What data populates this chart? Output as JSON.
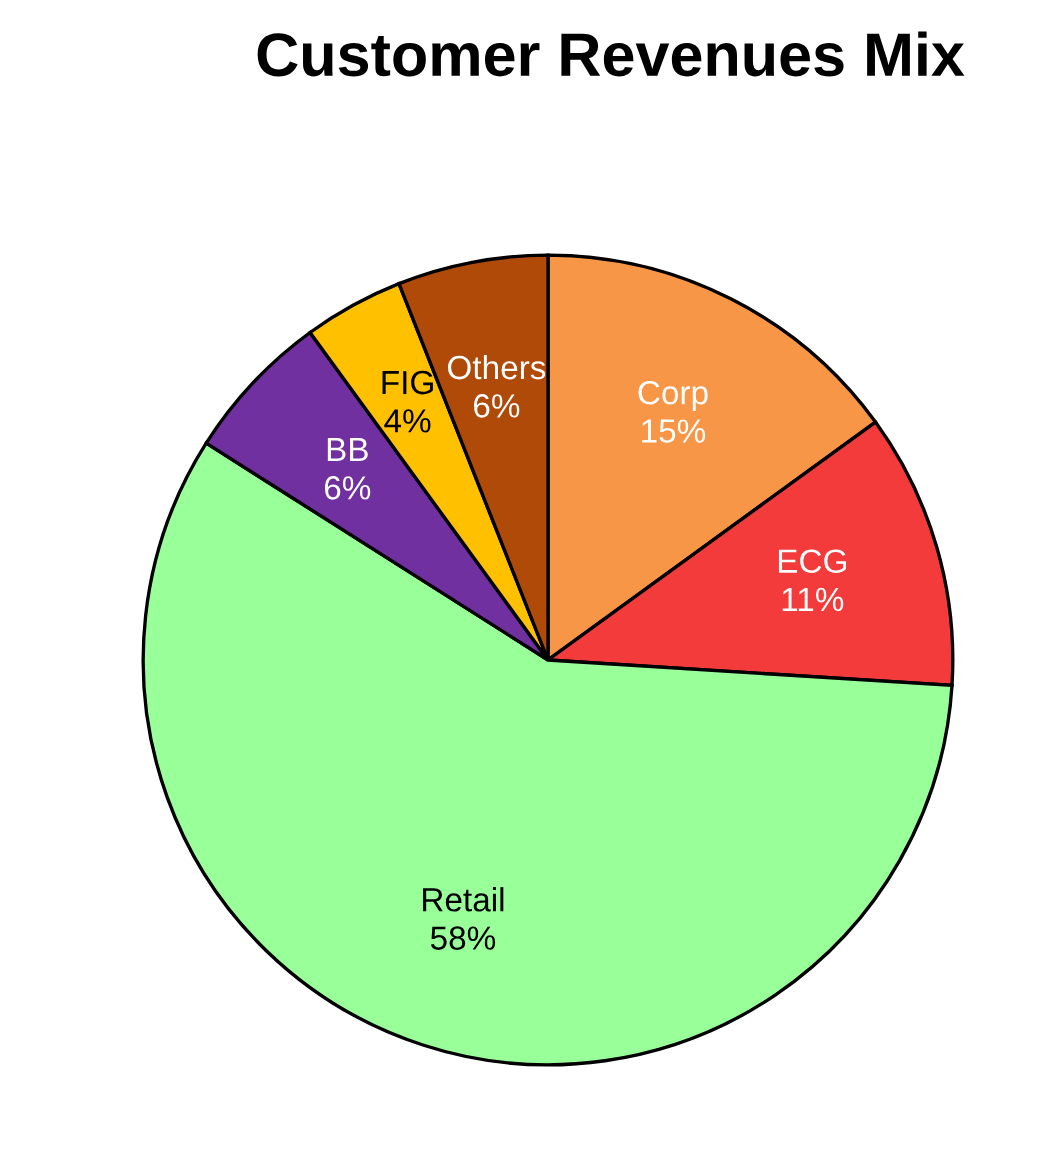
{
  "chart_data": {
    "type": "pie",
    "title": "Customer Revenues Mix",
    "categories": [
      "Corp",
      "ECG",
      "Retail",
      "BB",
      "FIG",
      "Others"
    ],
    "values": [
      15,
      11,
      58,
      6,
      4,
      6
    ],
    "value_labels": [
      "15%",
      "11%",
      "58%",
      "6%",
      "4%",
      "6%"
    ],
    "colors": [
      "#f79646",
      "#f33b3b",
      "#99ff99",
      "#7030a0",
      "#ffc000",
      "#b04a08"
    ]
  }
}
